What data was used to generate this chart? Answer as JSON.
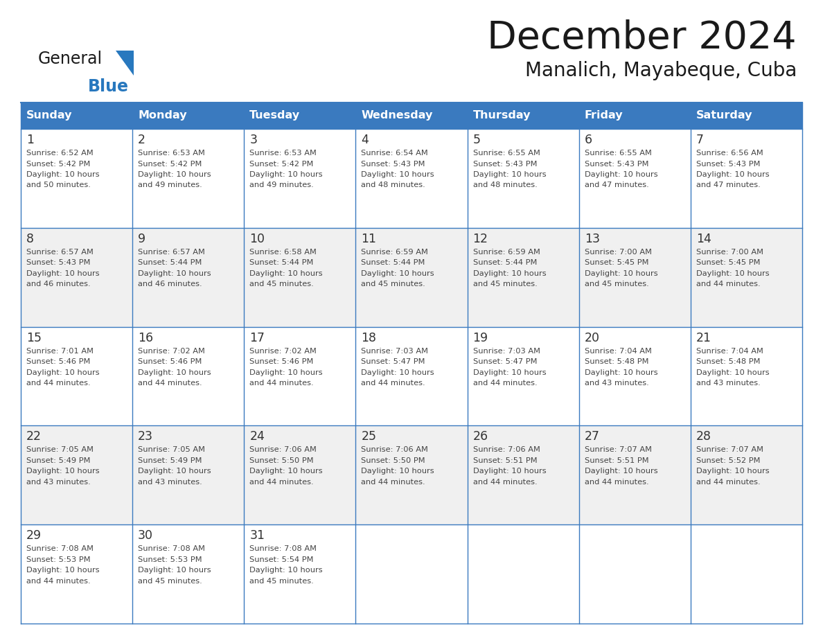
{
  "title": "December 2024",
  "subtitle": "Manalich, Mayabeque, Cuba",
  "header_color": "#3a7abf",
  "header_text_color": "#ffffff",
  "bg_color": "#ffffff",
  "cell_bg_even": "#ffffff",
  "cell_bg_odd": "#f0f0f0",
  "day_names": [
    "Sunday",
    "Monday",
    "Tuesday",
    "Wednesday",
    "Thursday",
    "Friday",
    "Saturday"
  ],
  "grid_line_color": "#3a7abf",
  "day_num_color": "#333333",
  "text_color": "#444444",
  "logo_text_color": "#1a1a1a",
  "logo_blue_color": "#2878be",
  "title_color": "#1a1a1a",
  "days": [
    {
      "day": 1,
      "col": 0,
      "row": 0,
      "sunrise": "6:52 AM",
      "sunset": "5:42 PM",
      "daylight_h": "10 hours",
      "daylight_m": "and 50 minutes."
    },
    {
      "day": 2,
      "col": 1,
      "row": 0,
      "sunrise": "6:53 AM",
      "sunset": "5:42 PM",
      "daylight_h": "10 hours",
      "daylight_m": "and 49 minutes."
    },
    {
      "day": 3,
      "col": 2,
      "row": 0,
      "sunrise": "6:53 AM",
      "sunset": "5:42 PM",
      "daylight_h": "10 hours",
      "daylight_m": "and 49 minutes."
    },
    {
      "day": 4,
      "col": 3,
      "row": 0,
      "sunrise": "6:54 AM",
      "sunset": "5:43 PM",
      "daylight_h": "10 hours",
      "daylight_m": "and 48 minutes."
    },
    {
      "day": 5,
      "col": 4,
      "row": 0,
      "sunrise": "6:55 AM",
      "sunset": "5:43 PM",
      "daylight_h": "10 hours",
      "daylight_m": "and 48 minutes."
    },
    {
      "day": 6,
      "col": 5,
      "row": 0,
      "sunrise": "6:55 AM",
      "sunset": "5:43 PM",
      "daylight_h": "10 hours",
      "daylight_m": "and 47 minutes."
    },
    {
      "day": 7,
      "col": 6,
      "row": 0,
      "sunrise": "6:56 AM",
      "sunset": "5:43 PM",
      "daylight_h": "10 hours",
      "daylight_m": "and 47 minutes."
    },
    {
      "day": 8,
      "col": 0,
      "row": 1,
      "sunrise": "6:57 AM",
      "sunset": "5:43 PM",
      "daylight_h": "10 hours",
      "daylight_m": "and 46 minutes."
    },
    {
      "day": 9,
      "col": 1,
      "row": 1,
      "sunrise": "6:57 AM",
      "sunset": "5:44 PM",
      "daylight_h": "10 hours",
      "daylight_m": "and 46 minutes."
    },
    {
      "day": 10,
      "col": 2,
      "row": 1,
      "sunrise": "6:58 AM",
      "sunset": "5:44 PM",
      "daylight_h": "10 hours",
      "daylight_m": "and 45 minutes."
    },
    {
      "day": 11,
      "col": 3,
      "row": 1,
      "sunrise": "6:59 AM",
      "sunset": "5:44 PM",
      "daylight_h": "10 hours",
      "daylight_m": "and 45 minutes."
    },
    {
      "day": 12,
      "col": 4,
      "row": 1,
      "sunrise": "6:59 AM",
      "sunset": "5:44 PM",
      "daylight_h": "10 hours",
      "daylight_m": "and 45 minutes."
    },
    {
      "day": 13,
      "col": 5,
      "row": 1,
      "sunrise": "7:00 AM",
      "sunset": "5:45 PM",
      "daylight_h": "10 hours",
      "daylight_m": "and 45 minutes."
    },
    {
      "day": 14,
      "col": 6,
      "row": 1,
      "sunrise": "7:00 AM",
      "sunset": "5:45 PM",
      "daylight_h": "10 hours",
      "daylight_m": "and 44 minutes."
    },
    {
      "day": 15,
      "col": 0,
      "row": 2,
      "sunrise": "7:01 AM",
      "sunset": "5:46 PM",
      "daylight_h": "10 hours",
      "daylight_m": "and 44 minutes."
    },
    {
      "day": 16,
      "col": 1,
      "row": 2,
      "sunrise": "7:02 AM",
      "sunset": "5:46 PM",
      "daylight_h": "10 hours",
      "daylight_m": "and 44 minutes."
    },
    {
      "day": 17,
      "col": 2,
      "row": 2,
      "sunrise": "7:02 AM",
      "sunset": "5:46 PM",
      "daylight_h": "10 hours",
      "daylight_m": "and 44 minutes."
    },
    {
      "day": 18,
      "col": 3,
      "row": 2,
      "sunrise": "7:03 AM",
      "sunset": "5:47 PM",
      "daylight_h": "10 hours",
      "daylight_m": "and 44 minutes."
    },
    {
      "day": 19,
      "col": 4,
      "row": 2,
      "sunrise": "7:03 AM",
      "sunset": "5:47 PM",
      "daylight_h": "10 hours",
      "daylight_m": "and 44 minutes."
    },
    {
      "day": 20,
      "col": 5,
      "row": 2,
      "sunrise": "7:04 AM",
      "sunset": "5:48 PM",
      "daylight_h": "10 hours",
      "daylight_m": "and 43 minutes."
    },
    {
      "day": 21,
      "col": 6,
      "row": 2,
      "sunrise": "7:04 AM",
      "sunset": "5:48 PM",
      "daylight_h": "10 hours",
      "daylight_m": "and 43 minutes."
    },
    {
      "day": 22,
      "col": 0,
      "row": 3,
      "sunrise": "7:05 AM",
      "sunset": "5:49 PM",
      "daylight_h": "10 hours",
      "daylight_m": "and 43 minutes."
    },
    {
      "day": 23,
      "col": 1,
      "row": 3,
      "sunrise": "7:05 AM",
      "sunset": "5:49 PM",
      "daylight_h": "10 hours",
      "daylight_m": "and 43 minutes."
    },
    {
      "day": 24,
      "col": 2,
      "row": 3,
      "sunrise": "7:06 AM",
      "sunset": "5:50 PM",
      "daylight_h": "10 hours",
      "daylight_m": "and 44 minutes."
    },
    {
      "day": 25,
      "col": 3,
      "row": 3,
      "sunrise": "7:06 AM",
      "sunset": "5:50 PM",
      "daylight_h": "10 hours",
      "daylight_m": "and 44 minutes."
    },
    {
      "day": 26,
      "col": 4,
      "row": 3,
      "sunrise": "7:06 AM",
      "sunset": "5:51 PM",
      "daylight_h": "10 hours",
      "daylight_m": "and 44 minutes."
    },
    {
      "day": 27,
      "col": 5,
      "row": 3,
      "sunrise": "7:07 AM",
      "sunset": "5:51 PM",
      "daylight_h": "10 hours",
      "daylight_m": "and 44 minutes."
    },
    {
      "day": 28,
      "col": 6,
      "row": 3,
      "sunrise": "7:07 AM",
      "sunset": "5:52 PM",
      "daylight_h": "10 hours",
      "daylight_m": "and 44 minutes."
    },
    {
      "day": 29,
      "col": 0,
      "row": 4,
      "sunrise": "7:08 AM",
      "sunset": "5:53 PM",
      "daylight_h": "10 hours",
      "daylight_m": "and 44 minutes."
    },
    {
      "day": 30,
      "col": 1,
      "row": 4,
      "sunrise": "7:08 AM",
      "sunset": "5:53 PM",
      "daylight_h": "10 hours",
      "daylight_m": "and 45 minutes."
    },
    {
      "day": 31,
      "col": 2,
      "row": 4,
      "sunrise": "7:08 AM",
      "sunset": "5:54 PM",
      "daylight_h": "10 hours",
      "daylight_m": "and 45 minutes."
    }
  ]
}
